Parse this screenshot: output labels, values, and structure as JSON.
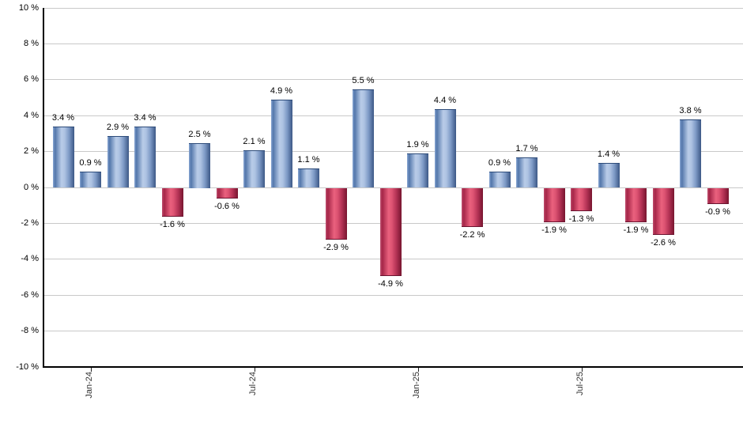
{
  "chart_data": {
    "type": "bar",
    "title": "",
    "xlabel": "",
    "ylabel": "",
    "ylim": [
      -10,
      10
    ],
    "grid": true,
    "legend": null,
    "values": [
      3.4,
      0.9,
      2.9,
      3.4,
      -1.6,
      2.5,
      -0.6,
      2.1,
      4.9,
      1.1,
      -2.9,
      5.5,
      -4.9,
      1.9,
      4.4,
      -2.2,
      0.9,
      1.7,
      -1.9,
      -1.3,
      1.4,
      -1.9,
      -2.6,
      3.8,
      -0.9
    ],
    "value_labels": [
      "3.4 %",
      "0.9 %",
      "2.9 %",
      "3.4 %",
      "-1.6 %",
      "2.5 %",
      "-0.6 %",
      "2.1 %",
      "4.9 %",
      "1.1 %",
      "-2.9 %",
      "5.5 %",
      "-4.9 %",
      "1.9 %",
      "4.4 %",
      "-2.2 %",
      "0.9 %",
      "1.7 %",
      "-1.9 %",
      "-1.3 %",
      "1.4 %",
      "-1.9 %",
      "-2.6 %",
      "3.8 %",
      "-0.9 %"
    ],
    "yticks": [
      {
        "value": 10,
        "label": "10 %"
      },
      {
        "value": 8,
        "label": "8 %"
      },
      {
        "value": 6,
        "label": "6 %"
      },
      {
        "value": 4,
        "label": "4 %"
      },
      {
        "value": 2,
        "label": "2 %"
      },
      {
        "value": 0,
        "label": "0 %"
      },
      {
        "value": -2,
        "label": "-2 %"
      },
      {
        "value": -4,
        "label": "-4 %"
      },
      {
        "value": -6,
        "label": "-6 %"
      },
      {
        "value": -8,
        "label": "-8 %"
      },
      {
        "value": -10,
        "label": "-10 %"
      }
    ],
    "xticks": [
      {
        "bar_index": 1,
        "label": "Jan-24"
      },
      {
        "bar_index": 7,
        "label": "Jul-24"
      },
      {
        "bar_index": 13,
        "label": "Jan-25"
      },
      {
        "bar_index": 19,
        "label": "Jul-25"
      }
    ],
    "colors": {
      "positive_bar": "#7a9cc8",
      "positive_bar_highlight": "#b9cce8",
      "positive_bar_dark": "#3c5886",
      "negative_bar": "#c43a5c",
      "negative_bar_highlight": "#ea617e",
      "negative_bar_dark": "#77152f",
      "gridline": "#c9c9c9",
      "axis": "#000000",
      "label_text": "#000000",
      "tick_text": "#333333",
      "background": "#ffffff"
    }
  }
}
